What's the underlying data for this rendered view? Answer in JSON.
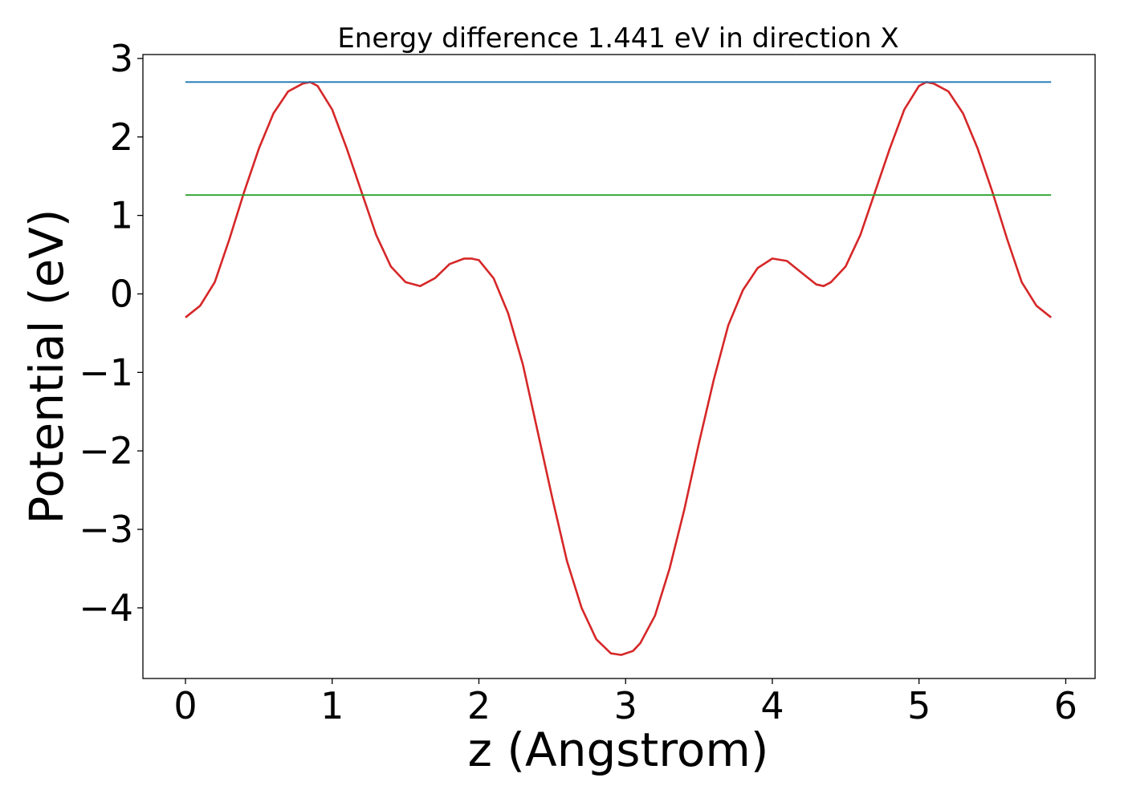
{
  "chart_data": {
    "type": "line",
    "title": "Energy difference 1.441 eV in direction X",
    "xlabel": "z (Angstrom)",
    "ylabel": "Potential (eV)",
    "xlim": [
      -0.29,
      6.2
    ],
    "ylim": [
      -4.9,
      3.05
    ],
    "xticks": [
      0,
      1,
      2,
      3,
      4,
      5,
      6
    ],
    "xtick_labels": [
      "0",
      "1",
      "2",
      "3",
      "4",
      "5",
      "6"
    ],
    "yticks": [
      -4,
      -3,
      -2,
      -1,
      0,
      1,
      2,
      3
    ],
    "ytick_labels": [
      "−4",
      "−3",
      "−2",
      "−1",
      "0",
      "1",
      "2",
      "3"
    ],
    "grid": false,
    "series": [
      {
        "color": "#d62728",
        "x": [
          0,
          0.1,
          0.2,
          0.3,
          0.4,
          0.5,
          0.6,
          0.7,
          0.8,
          0.85,
          0.9,
          1.0,
          1.1,
          1.2,
          1.3,
          1.4,
          1.5,
          1.6,
          1.7,
          1.8,
          1.9,
          1.95,
          2.0,
          2.1,
          2.2,
          2.3,
          2.4,
          2.5,
          2.6,
          2.7,
          2.8,
          2.9,
          2.97,
          3.05,
          3.1,
          3.2,
          3.3,
          3.4,
          3.5,
          3.6,
          3.7,
          3.8,
          3.9,
          4.0,
          4.1,
          4.2,
          4.3,
          4.35,
          4.4,
          4.5,
          4.6,
          4.7,
          4.8,
          4.9,
          5.0,
          5.05,
          5.1,
          5.2,
          5.3,
          5.4,
          5.5,
          5.6,
          5.7,
          5.8,
          5.9
        ],
        "y": [
          -0.3,
          -0.15,
          0.15,
          0.7,
          1.3,
          1.85,
          2.3,
          2.58,
          2.68,
          2.7,
          2.65,
          2.35,
          1.85,
          1.3,
          0.75,
          0.35,
          0.15,
          0.1,
          0.2,
          0.38,
          0.45,
          0.45,
          0.43,
          0.2,
          -0.25,
          -0.9,
          -1.75,
          -2.6,
          -3.4,
          -4.0,
          -4.4,
          -4.58,
          -4.6,
          -4.55,
          -4.45,
          -4.1,
          -3.5,
          -2.75,
          -1.9,
          -1.1,
          -0.4,
          0.05,
          0.33,
          0.45,
          0.42,
          0.27,
          0.12,
          0.1,
          0.15,
          0.35,
          0.75,
          1.3,
          1.85,
          2.35,
          2.65,
          2.7,
          2.68,
          2.58,
          2.3,
          1.85,
          1.3,
          0.7,
          0.15,
          -0.15,
          -0.3
        ]
      },
      {
        "color": "#1f77b4",
        "x": [
          0,
          5.9
        ],
        "y": [
          2.7,
          2.7
        ]
      },
      {
        "color": "#2ca02c",
        "x": [
          0,
          5.9
        ],
        "y": [
          1.26,
          1.26
        ]
      }
    ]
  }
}
